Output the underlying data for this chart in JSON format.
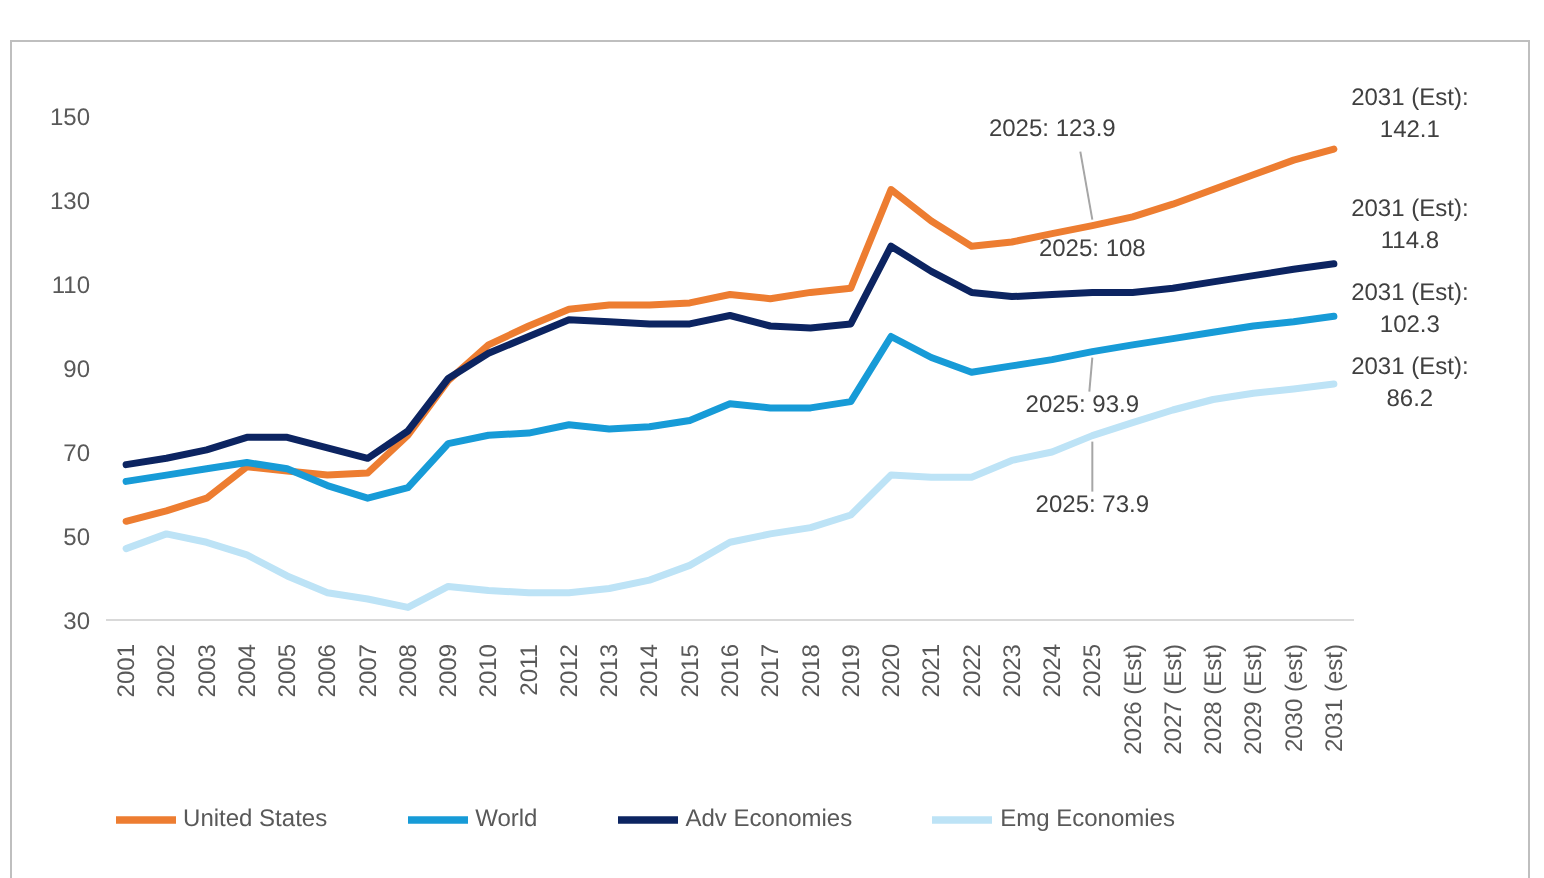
{
  "chart_data": {
    "type": "line",
    "categories": [
      "2001",
      "2002",
      "2003",
      "2004",
      "2005",
      "2006",
      "2007",
      "2008",
      "2009",
      "2010",
      "2011",
      "2012",
      "2013",
      "2014",
      "2015",
      "2016",
      "2017",
      "2018",
      "2019",
      "2020",
      "2021",
      "2022",
      "2023",
      "2024",
      "2025",
      "2026 (Est)",
      "2027 (Est)",
      "2028 (Est)",
      "2029 (Est)",
      "2030 (est)",
      "2031 (est)"
    ],
    "series": [
      {
        "name": "United States",
        "color": "#ed7d31",
        "values": [
          53.5,
          56,
          59,
          66.5,
          65.5,
          64.5,
          65,
          74,
          87,
          95.5,
          100,
          104,
          105,
          105,
          105.5,
          107.5,
          106.5,
          108,
          109,
          132.5,
          125,
          119,
          120,
          122,
          123.9,
          126,
          129,
          132.5,
          136,
          139.5,
          142.1
        ]
      },
      {
        "name": "World",
        "color": "#179bd7",
        "values": [
          63,
          64.5,
          66,
          67.5,
          66,
          62,
          59,
          61.5,
          72,
          74,
          74.5,
          76.5,
          75.5,
          76,
          77.5,
          81.5,
          80.5,
          80.5,
          82,
          97.5,
          92.5,
          89,
          90.5,
          92,
          93.9,
          95.5,
          97,
          98.5,
          100,
          101,
          102.3
        ]
      },
      {
        "name": "Adv Economies",
        "color": "#0c2461",
        "values": [
          67,
          68.5,
          70.5,
          73.5,
          73.5,
          71,
          68.5,
          75,
          87.5,
          93.5,
          97.5,
          101.5,
          101,
          100.5,
          100.5,
          102.5,
          100,
          99.5,
          100.5,
          119,
          113,
          108,
          107,
          107.5,
          108,
          108,
          109,
          110.5,
          112,
          113.5,
          114.8
        ]
      },
      {
        "name": "Emg Economies",
        "color": "#bde3f6",
        "values": [
          47,
          50.5,
          48.5,
          45.5,
          40.5,
          36.5,
          35,
          33,
          38,
          37,
          36.5,
          36.5,
          37.5,
          39.5,
          43,
          48.5,
          50.5,
          52,
          55,
          64.5,
          64,
          64,
          68,
          70,
          73.9,
          77,
          80,
          82.5,
          84,
          85,
          86.2
        ]
      }
    ],
    "ylim": [
      30,
      150
    ],
    "yticks": [
      30,
      50,
      70,
      90,
      110,
      130,
      150
    ],
    "grid": false,
    "legend": "bottom",
    "marker": "none",
    "line_style": "solid",
    "annotations": [
      {
        "text": "2025: 123.9",
        "x": "2025",
        "y": 123.9
      },
      {
        "text": "2025: 108",
        "x": "2025",
        "y": 108
      },
      {
        "text": "2025: 93.9",
        "x": "2025",
        "y": 93.9
      },
      {
        "text": "2025: 73.9",
        "x": "2025",
        "y": 73.9
      },
      {
        "text": "2031 (Est): 142.1",
        "x": "2031 (est)",
        "y": 142.1
      },
      {
        "text": "2031 (Est): 114.8",
        "x": "2031 (est)",
        "y": 114.8
      },
      {
        "text": "2031 (Est): 102.3",
        "x": "2031 (est)",
        "y": 102.3
      },
      {
        "text": "2031 (Est): 86.2",
        "x": "2031 (est)",
        "y": 86.2
      }
    ]
  }
}
